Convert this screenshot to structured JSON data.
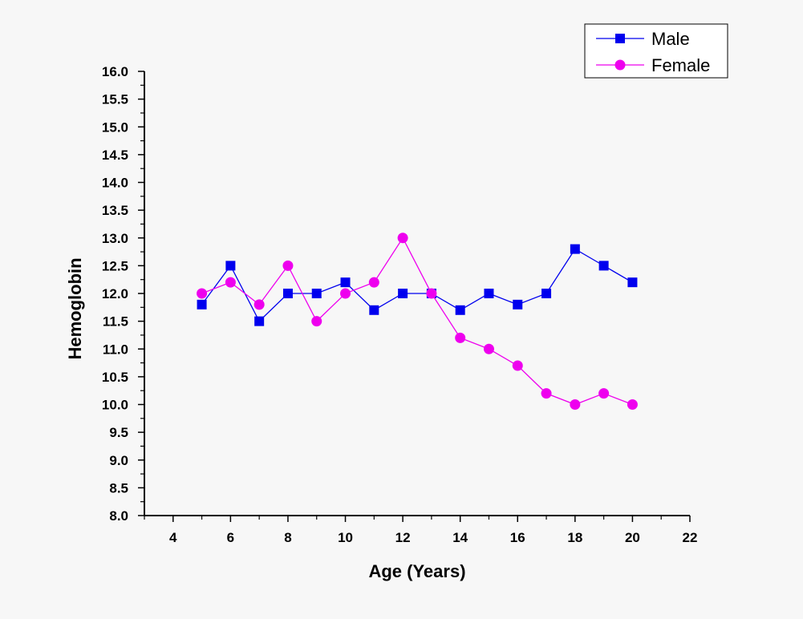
{
  "chart_data": {
    "type": "line",
    "title": "",
    "xlabel": "Age (Years)",
    "ylabel": "Hemoglobin",
    "xlim": [
      3,
      22
    ],
    "ylim": [
      8.0,
      16.0
    ],
    "x_ticks": [
      "4",
      "6",
      "8",
      "10",
      "12",
      "14",
      "16",
      "18",
      "20",
      "22"
    ],
    "y_ticks": [
      "8.0",
      "8.5",
      "9.0",
      "9.5",
      "10.0",
      "10.5",
      "11.0",
      "11.5",
      "12.0",
      "12.5",
      "13.0",
      "13.5",
      "14.0",
      "14.5",
      "15.0",
      "15.5",
      "16.0"
    ],
    "grid": false,
    "legend_position": "top-right",
    "x": [
      5,
      6,
      7,
      8,
      9,
      10,
      11,
      12,
      13,
      14,
      15,
      16,
      17,
      18,
      19,
      20
    ],
    "series": [
      {
        "name": "Male",
        "color": "#0000ee",
        "marker": "square",
        "values": [
          11.8,
          12.5,
          11.5,
          12.0,
          12.0,
          12.2,
          11.7,
          12.0,
          12.0,
          11.7,
          12.0,
          11.8,
          12.0,
          12.8,
          12.5,
          12.2
        ]
      },
      {
        "name": "Female",
        "color": "#ee00ee",
        "marker": "circle",
        "values": [
          12.0,
          12.2,
          11.8,
          12.5,
          11.5,
          12.0,
          12.2,
          13.0,
          12.0,
          11.2,
          11.0,
          10.7,
          10.2,
          10.0,
          10.2,
          10.0
        ]
      }
    ]
  }
}
